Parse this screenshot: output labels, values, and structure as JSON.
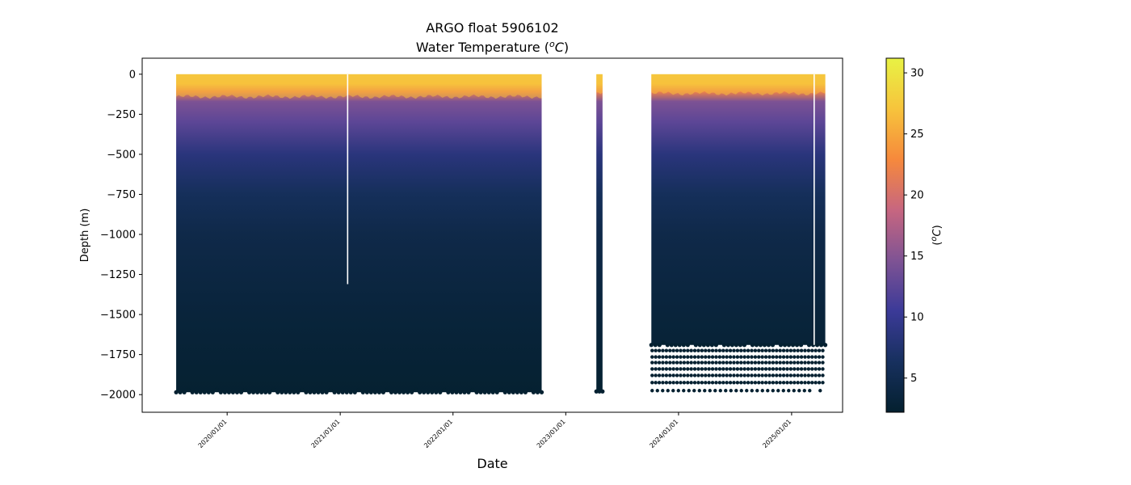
{
  "chart_data": {
    "type": "scatter",
    "title": "ARGO float 5906102",
    "subtitle_prefix": "Water Temperature (",
    "subtitle_unit_base": "C",
    "subtitle_unit_sup": "o",
    "subtitle_suffix": ")",
    "xlabel": "Date",
    "ylabel": "Depth (m)",
    "colorbar_label_prefix": "(",
    "colorbar_label_unit_base": "C",
    "colorbar_label_unit_sup": "o",
    "colorbar_label_suffix": ")",
    "colormap": "thermal",
    "colormap_stops": [
      "#04202f",
      "#17305e",
      "#3b3a98",
      "#7f5394",
      "#c76680",
      "#f6893c",
      "#f7c43c",
      "#e8f244"
    ],
    "color_range": [
      2.2,
      31.2
    ],
    "colorbar_ticks": [
      {
        "value": 5,
        "label": "5"
      },
      {
        "value": 10,
        "label": "10"
      },
      {
        "value": 15,
        "label": "15"
      },
      {
        "value": 20,
        "label": "20"
      },
      {
        "value": 25,
        "label": "25"
      },
      {
        "value": 30,
        "label": "30"
      }
    ],
    "xlim": [
      "2019-04-01",
      "2025-06-15"
    ],
    "ylim": [
      -2110,
      100
    ],
    "y_ticks": [
      {
        "value": 0,
        "label": "0"
      },
      {
        "value": -250,
        "label": "−250"
      },
      {
        "value": -500,
        "label": "−500"
      },
      {
        "value": -750,
        "label": "−750"
      },
      {
        "value": -1000,
        "label": "−1000"
      },
      {
        "value": -1250,
        "label": "−1250"
      },
      {
        "value": -1500,
        "label": "−1500"
      },
      {
        "value": -1750,
        "label": "−1750"
      },
      {
        "value": -2000,
        "label": "−2000"
      }
    ],
    "x_ticks": [
      {
        "value": "2020-01-01",
        "label": "2020/01/01"
      },
      {
        "value": "2021-01-01",
        "label": "2021/01/01"
      },
      {
        "value": "2022-01-01",
        "label": "2022/01/01"
      },
      {
        "value": "2023-01-01",
        "label": "2023/01/01"
      },
      {
        "value": "2024-01-01",
        "label": "2024/01/01"
      },
      {
        "value": "2025-01-01",
        "label": "2025/01/01"
      }
    ],
    "grid": false,
    "profile_blocks": [
      {
        "start": "2019-07-20",
        "end": "2022-10-15",
        "max_depth": -1985,
        "mixed_layer_depth": -140,
        "gap_at": "2021-01-25",
        "gap_depth": -1310
      },
      {
        "start": "2023-04-10",
        "end": "2023-04-30",
        "max_depth": -1980,
        "mixed_layer_depth": -120
      },
      {
        "start": "2023-10-05",
        "end": "2025-04-20",
        "max_depth": -1690,
        "mixed_layer_depth": -120,
        "gap_at": "2025-03-15",
        "gap_depth": -1690,
        "sparse_depths": [
          -1725,
          -1765,
          -1800,
          -1840,
          -1880,
          -1925,
          -1975
        ]
      }
    ],
    "temperature_profile": [
      {
        "depth": 0,
        "temp": 28.5
      },
      {
        "depth": -60,
        "temp": 27.5
      },
      {
        "depth": -110,
        "temp": 22
      },
      {
        "depth": -170,
        "temp": 14.5
      },
      {
        "depth": -300,
        "temp": 12.5
      },
      {
        "depth": -500,
        "temp": 8.5
      },
      {
        "depth": -750,
        "temp": 6
      },
      {
        "depth": -1000,
        "temp": 4.5
      },
      {
        "depth": -1500,
        "temp": 3.3
      },
      {
        "depth": -2000,
        "temp": 2.4
      }
    ]
  }
}
